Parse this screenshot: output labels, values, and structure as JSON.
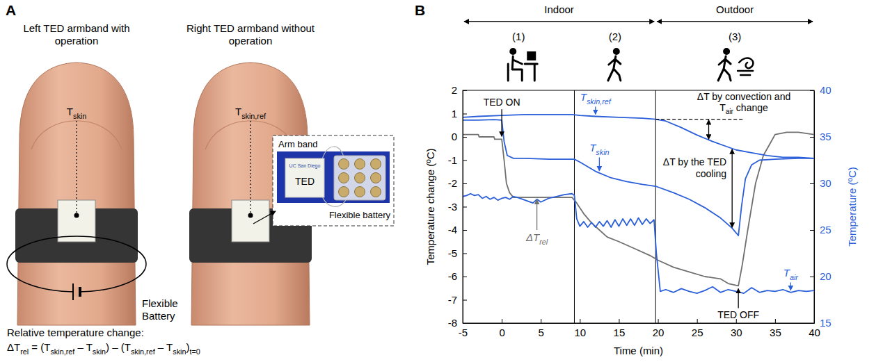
{
  "panel_a": {
    "label": "A",
    "left_arm_title": "Left TED armband with operation",
    "right_arm_title": "Right TED armband without operation",
    "left_sensor": [
      {
        "text": "T"
      },
      {
        "sub": "skin"
      }
    ],
    "right_sensor": [
      {
        "text": "T"
      },
      {
        "sub": "skin,ref"
      }
    ],
    "battery_label": "Flexible Battery",
    "inset": {
      "arm_band": "Arm band",
      "ted": "TED",
      "ted_print": "UC San Diego",
      "battery": "Flexible battery"
    },
    "formula_title": "Relative temperature change:",
    "formula": [
      {
        "text": "ΔT"
      },
      {
        "sub": "rel"
      },
      {
        "text": " = (T"
      },
      {
        "sub": "skin,ref"
      },
      {
        "text": " – T"
      },
      {
        "sub": "skin"
      },
      {
        "text": ") – (T"
      },
      {
        "sub": "skin,ref"
      },
      {
        "text": " – T"
      },
      {
        "sub": "skin"
      },
      {
        "text": ")"
      },
      {
        "sub": "t=0"
      }
    ]
  },
  "chart_data": {
    "type": "line",
    "label": "B",
    "x_label": "Time (min)",
    "y_label": "Temperature change (ºC)",
    "y2_label": "Temperature (ºC)",
    "xlim": [
      -5,
      40
    ],
    "xticks": [
      -5,
      0,
      5,
      10,
      15,
      20,
      25,
      30,
      35,
      40
    ],
    "ylim": [
      -8,
      2
    ],
    "yticks": [
      -8,
      -7,
      -6,
      -5,
      -4,
      -3,
      -2,
      -1,
      0,
      1,
      2
    ],
    "y2lim": [
      15,
      40
    ],
    "y2ticks": [
      15,
      20,
      25,
      30,
      35,
      40
    ],
    "environments": [
      {
        "label": "Indoor",
        "start": -5,
        "end": 19.7
      },
      {
        "label": "Outdoor",
        "start": 19.7,
        "end": 40
      }
    ],
    "phases": [
      "(1)",
      "(2)",
      "(3)"
    ],
    "phase_boundaries": [
      9.3,
      19.7
    ],
    "events": [
      {
        "label": "TED ON",
        "x": 0
      },
      {
        "label": "TED OFF",
        "x": 30.3
      }
    ],
    "annotations": [
      [
        {
          "text": "ΔT by convection and T"
        },
        {
          "sub": "air"
        },
        {
          "text": " change"
        }
      ],
      [
        {
          "text": "ΔT by the TED cooling"
        }
      ]
    ],
    "series": [
      {
        "name": "ΔTrel",
        "color": "#707070",
        "axis": "y",
        "x": [
          -5,
          -3,
          -2.9,
          -1,
          -0.9,
          0,
          0.3,
          0.6,
          1,
          1.5,
          4,
          9,
          9.5,
          10.5,
          11.5,
          12.5,
          13.5,
          15,
          17,
          19,
          20,
          22,
          24,
          26,
          28,
          29,
          30.3,
          30.8,
          31.5,
          32.5,
          33.5,
          34.5,
          35,
          36.5,
          38,
          40
        ],
        "values": [
          0.1,
          0.1,
          0,
          0,
          -0.1,
          -0.1,
          -1,
          -2,
          -2.4,
          -2.6,
          -2.6,
          -2.6,
          -2.8,
          -3.3,
          -3.7,
          -4,
          -4.3,
          -4.5,
          -4.8,
          -5.1,
          -5.3,
          -5.6,
          -5.8,
          -6,
          -6.1,
          -6.3,
          -6.4,
          -5.5,
          -4,
          -2,
          -0.8,
          -0.2,
          0.1,
          0.2,
          0.2,
          0.1
        ]
      },
      {
        "name": "Tskin,ref",
        "color": "#2b5fd9",
        "axis": "y2",
        "x": [
          -5,
          -3,
          0,
          3,
          6,
          9,
          10,
          12,
          15,
          18,
          19.7,
          21,
          23,
          25,
          27,
          29,
          30,
          32,
          34,
          36,
          38,
          40
        ],
        "values": [
          37.1,
          37.2,
          37.3,
          37.4,
          37.4,
          37.4,
          37.3,
          37.2,
          37.1,
          37,
          36.9,
          36.7,
          36,
          35.2,
          34.5,
          33.9,
          33.6,
          33.3,
          33,
          32.8,
          32.8,
          32.7
        ]
      },
      {
        "name": "Tskin",
        "color": "#2b5fd9",
        "axis": "y2",
        "x": [
          -5,
          -3,
          -1,
          0,
          0.3,
          0.7,
          1.5,
          3,
          6,
          9,
          9.3,
          10,
          12,
          14,
          16,
          18,
          19.7,
          22,
          24,
          26,
          28,
          29.5,
          30.3,
          30.7,
          31.2,
          32,
          33,
          35,
          38,
          40
        ],
        "values": [
          36.8,
          36.8,
          36.85,
          36.8,
          34.5,
          33,
          32.7,
          32.7,
          32.6,
          32.6,
          32.6,
          32.3,
          31.3,
          30.6,
          30.2,
          29.9,
          29.7,
          29,
          28.3,
          27.4,
          26.3,
          25.2,
          24.4,
          27.5,
          30.5,
          32,
          32.5,
          32.6,
          32.7,
          32.7
        ]
      },
      {
        "name": "Tair",
        "color": "#2b5fd9",
        "axis": "y2",
        "x": [
          -5,
          -4.5,
          -4,
          -3.5,
          -3,
          -2.5,
          -2,
          -1.5,
          -1,
          -0.5,
          0,
          0.5,
          1,
          1.5,
          2,
          3,
          4,
          4.5,
          5,
          6,
          7,
          8,
          9,
          9.3,
          9.6,
          10,
          10.5,
          11,
          11.5,
          12,
          12.5,
          13,
          13.5,
          14,
          14.5,
          15,
          15.5,
          16,
          16.5,
          17,
          17.5,
          18,
          18.5,
          19,
          19.5,
          19.8,
          20.3,
          21,
          22,
          23,
          24,
          25,
          26,
          27,
          28,
          29,
          30,
          31,
          32,
          33,
          34,
          35,
          36,
          37,
          38,
          39,
          40
        ],
        "values": [
          28.6,
          28.7,
          28.9,
          28.7,
          28.8,
          28.4,
          28.6,
          28.3,
          28.5,
          28.2,
          28.4,
          28.5,
          28.3,
          28.6,
          28.5,
          28.2,
          27.9,
          28.3,
          28,
          28.4,
          28.6,
          28.8,
          28.9,
          28.7,
          26.2,
          25.4,
          25.9,
          25.3,
          25.8,
          25.3,
          25.9,
          25.4,
          26,
          25.3,
          26.1,
          25.4,
          26.2,
          25.5,
          26.2,
          25.5,
          26.3,
          25.6,
          26.2,
          25.7,
          26.1,
          22.5,
          18.4,
          18.6,
          18.3,
          18.7,
          18.4,
          18.2,
          18.5,
          18.9,
          18.3,
          18.6,
          18.4,
          18.2,
          18.8,
          18.3,
          18.5,
          18.4,
          18.6,
          18.3,
          18.5,
          18.4,
          18.5
        ]
      }
    ]
  }
}
